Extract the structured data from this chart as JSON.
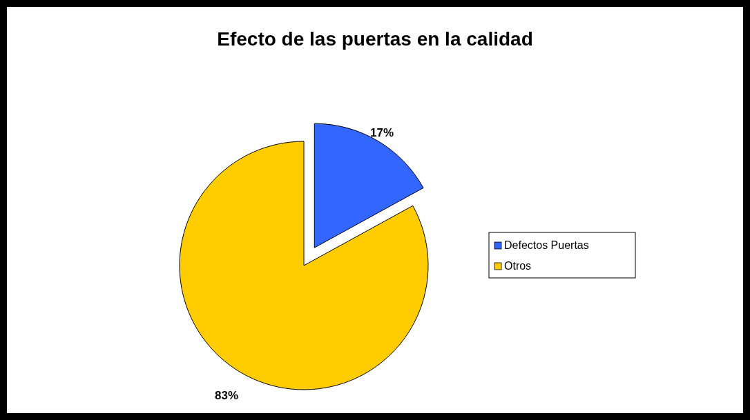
{
  "chart_data": {
    "type": "pie",
    "title": "Efecto de las puertas en la calidad",
    "categories": [
      "Defectos Puertas",
      "Otros"
    ],
    "values": [
      17,
      83
    ],
    "colors": [
      "#3366ff",
      "#ffcc00"
    ],
    "value_labels": [
      "17%",
      "83%"
    ],
    "legend": "right"
  }
}
